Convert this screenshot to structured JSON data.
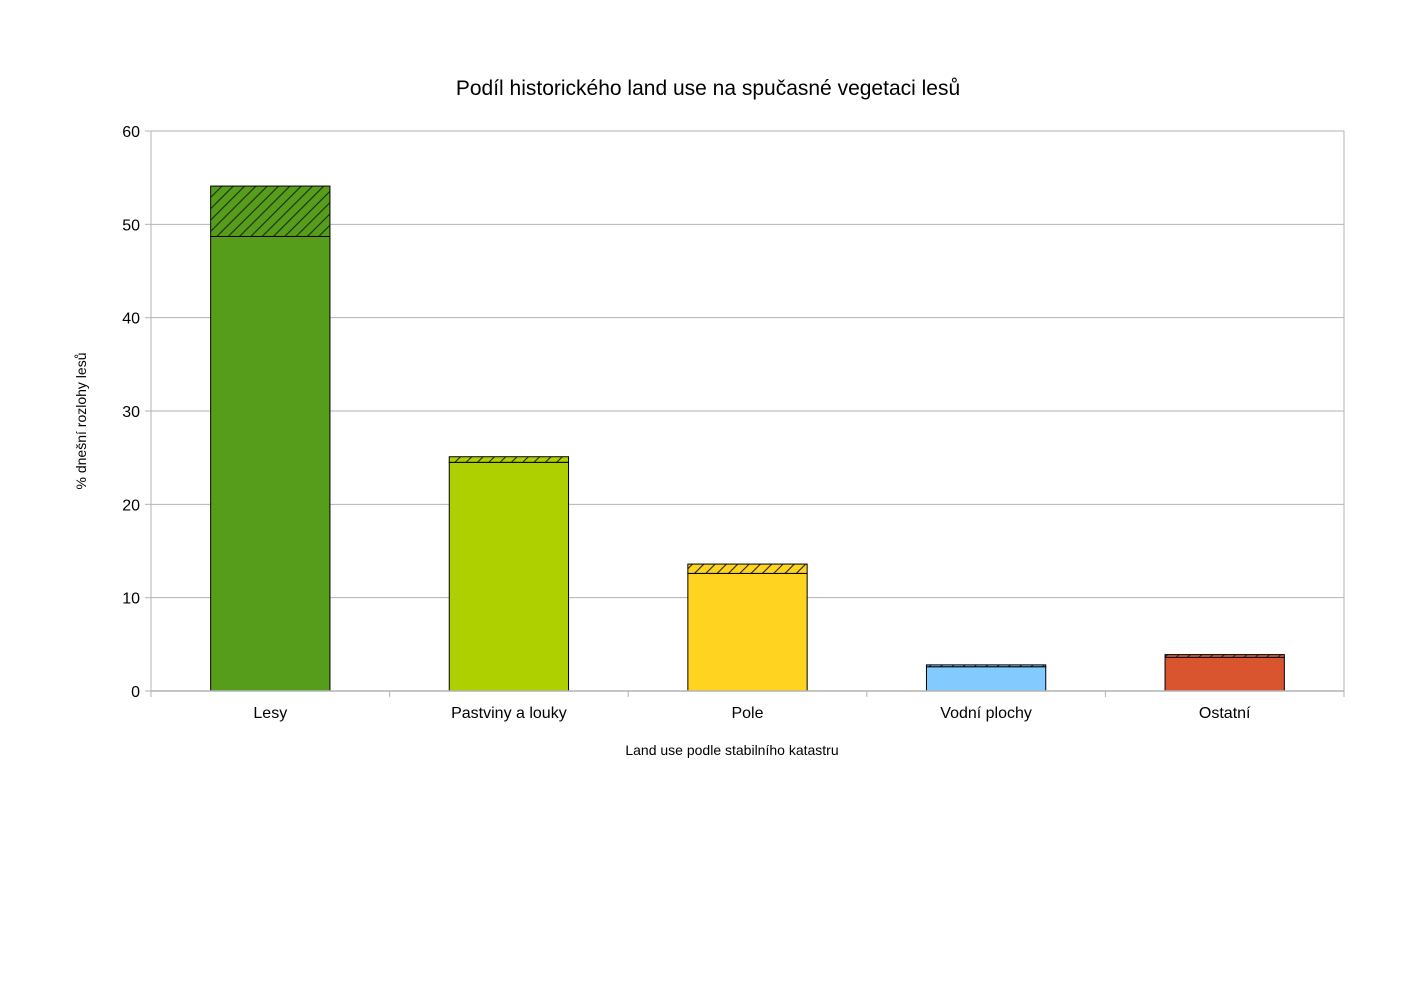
{
  "chart_data": {
    "type": "bar",
    "stacked": true,
    "title": "Podíl historického land use na spučasné vegetaci lesů",
    "xlabel": "Land use podle stabilního katastru",
    "ylabel": "% dnešní rozlohy lesů",
    "ylim": [
      0,
      60
    ],
    "yticks": [
      "0",
      "10",
      "20",
      "30",
      "40",
      "50",
      "60"
    ],
    "grid": true,
    "legend": "none",
    "categories": [
      "Lesy",
      "Pastviny a louky",
      "Pole",
      "Vodní plochy",
      "Ostatní"
    ],
    "series": [
      {
        "pattern": "solid",
        "values": [
          48.7,
          24.5,
          12.6,
          2.6,
          3.6
        ]
      },
      {
        "pattern": "hatched",
        "values": [
          5.4,
          0.6,
          1.0,
          0.2,
          0.3
        ]
      }
    ],
    "colors": [
      "#579d1c",
      "#aecf00",
      "#ffd320",
      "#83caff",
      "#d9552f"
    ]
  }
}
